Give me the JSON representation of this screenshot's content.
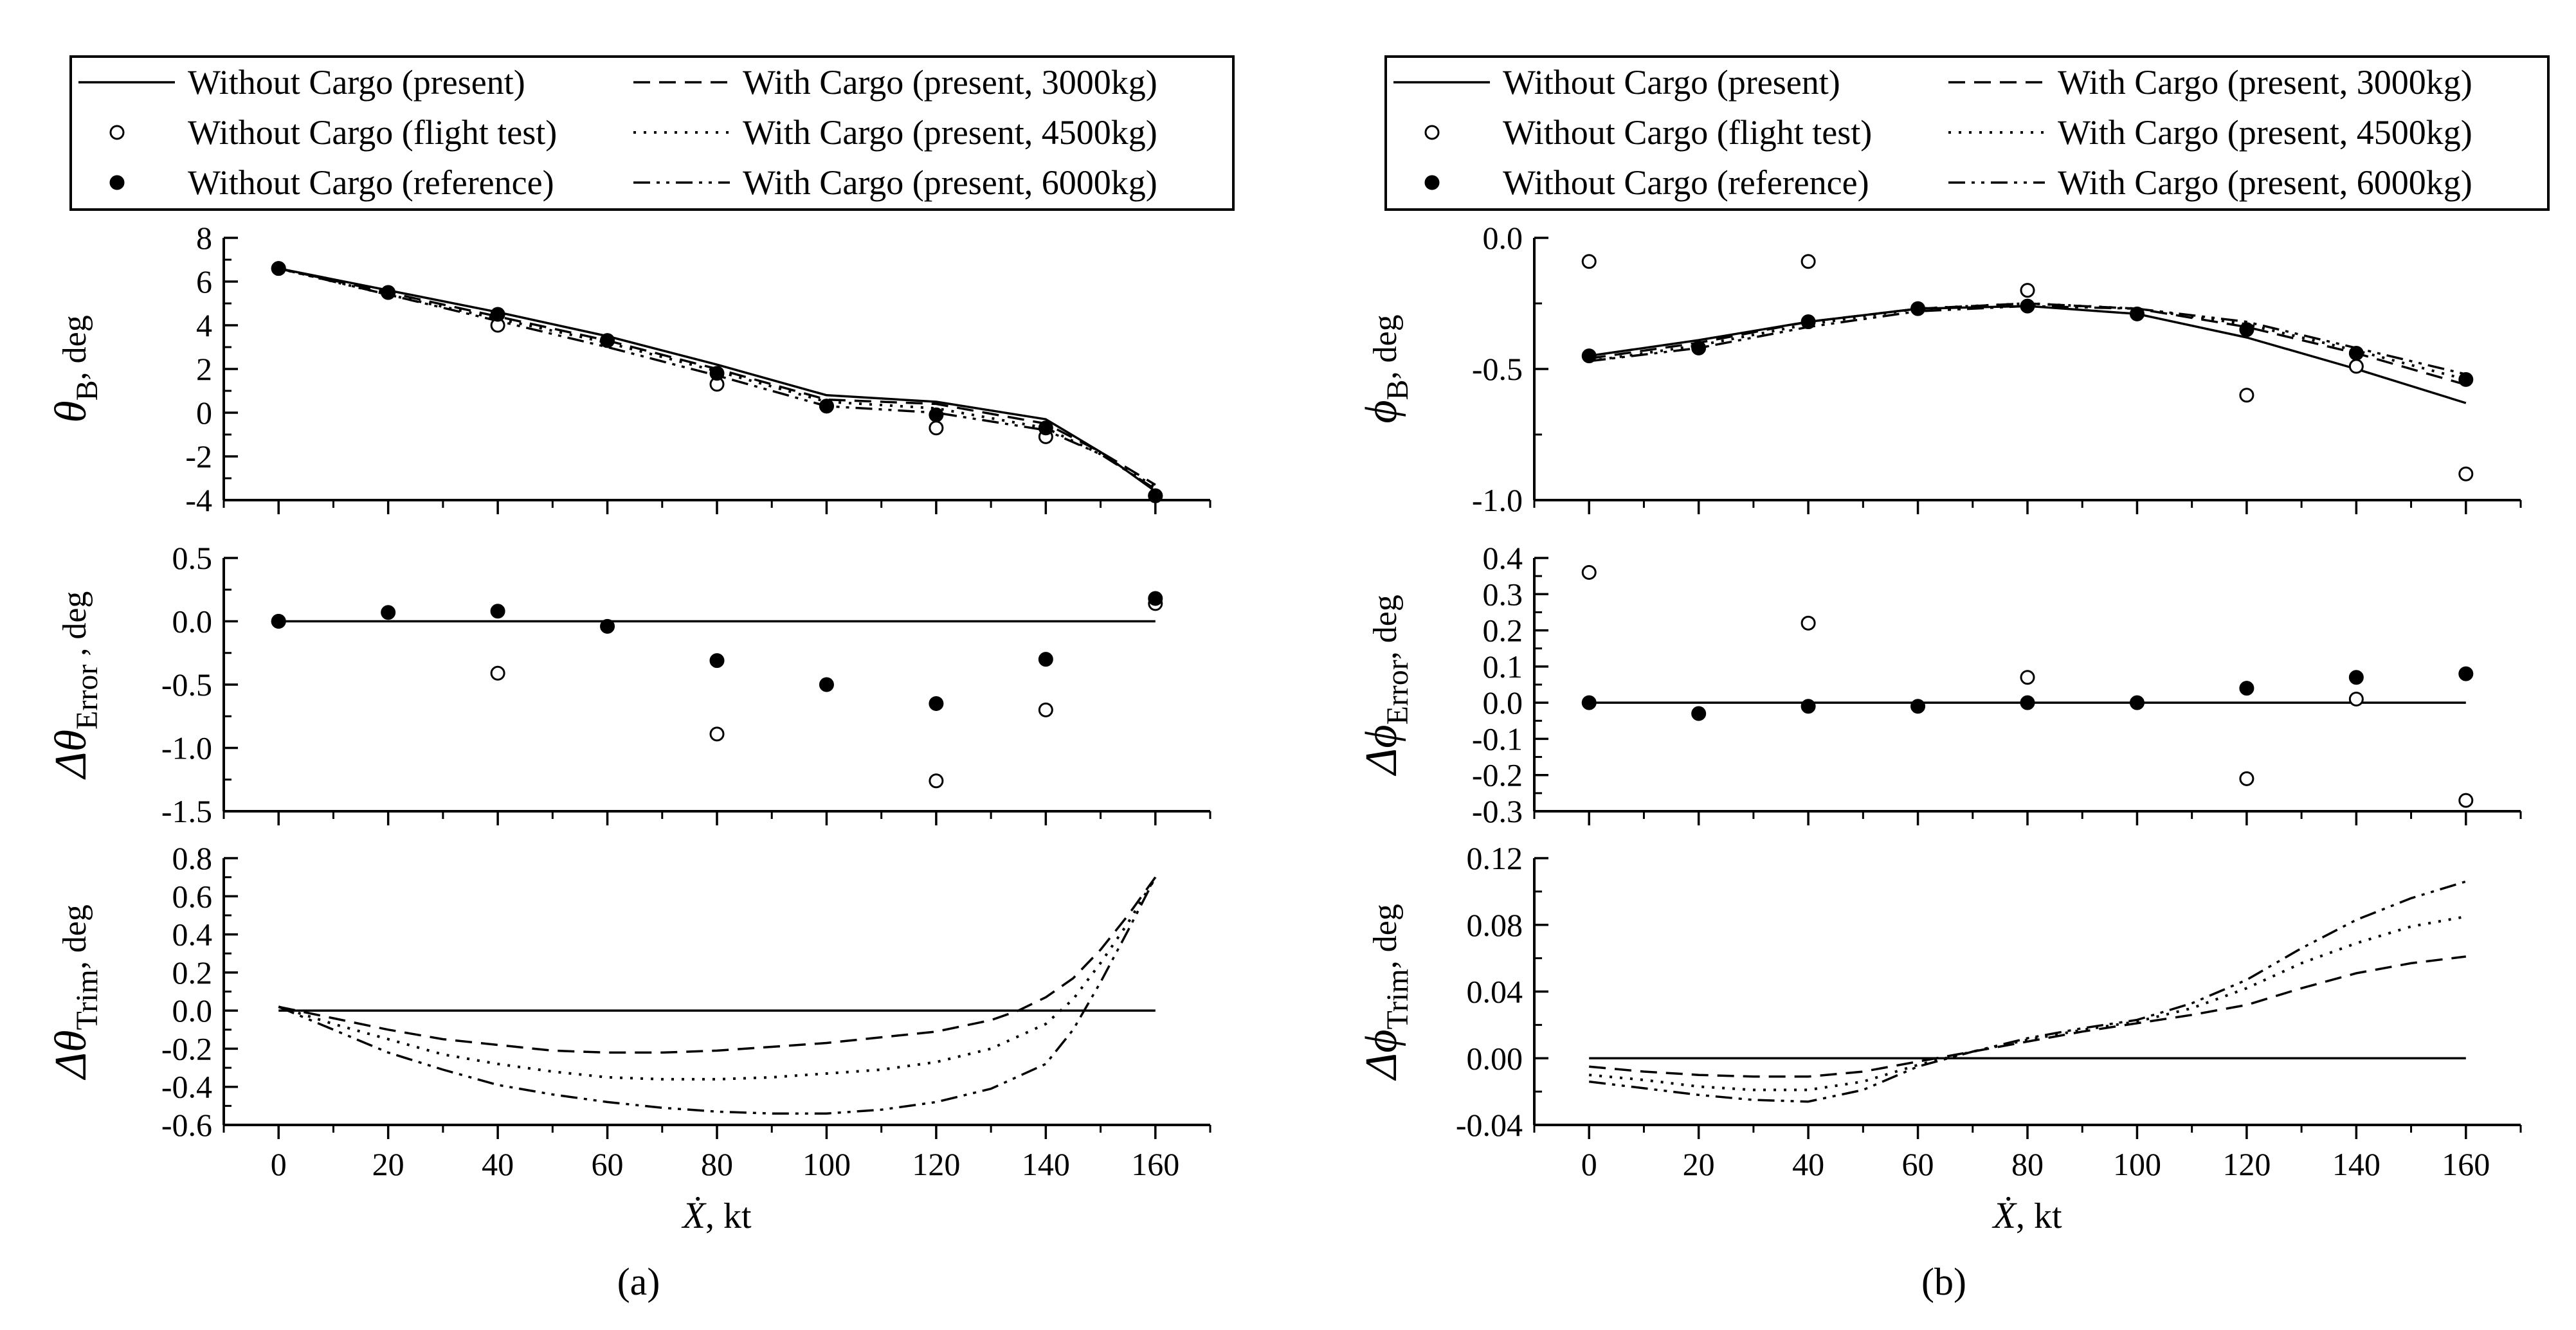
{
  "figure": {
    "caption_a": "(a)",
    "caption_b": "(b)",
    "x_symbol": "Ẋ",
    "x_unit": ", kt"
  },
  "legend": {
    "entries": [
      {
        "label": "Without Cargo (present)",
        "style": "solid"
      },
      {
        "label": "With Cargo (present, 3000kg)",
        "style": "dashed"
      },
      {
        "label": "Without Cargo (flight test)",
        "style": "open-circle"
      },
      {
        "label": "With Cargo (present, 4500kg)",
        "style": "dotted"
      },
      {
        "label": "Without Cargo (reference)",
        "style": "filled-circle"
      },
      {
        "label": "With Cargo (present, 6000kg)",
        "style": "dashdotdot"
      }
    ]
  },
  "chart_data": [
    {
      "id": "theta_B",
      "type": "line",
      "col": 0,
      "row": 0,
      "ylabel": {
        "sym": "θ",
        "sub": "B",
        "unit": ", deg"
      },
      "xlim": [
        -10,
        170
      ],
      "ylim": [
        -4,
        8
      ],
      "yticks": [
        -4,
        -2,
        0,
        2,
        4,
        6,
        8
      ],
      "ytick_labels": [
        "-4",
        "-2",
        "0",
        "2",
        "4",
        "6",
        "8"
      ],
      "series": [
        {
          "name": "Without Cargo (present)",
          "style": "solid",
          "x": [
            0,
            20,
            40,
            60,
            80,
            100,
            120,
            140,
            150,
            160
          ],
          "y": [
            6.6,
            5.6,
            4.6,
            3.5,
            2.2,
            0.8,
            0.5,
            -0.3,
            -1.8,
            -3.6
          ]
        },
        {
          "name": "With Cargo (present, 3000kg)",
          "style": "dashed",
          "x": [
            0,
            20,
            40,
            60,
            80,
            100,
            120,
            140,
            150,
            160
          ],
          "y": [
            6.6,
            5.5,
            4.4,
            3.3,
            2.0,
            0.6,
            0.4,
            -0.5,
            -1.8,
            -3.3
          ]
        },
        {
          "name": "With Cargo (present, 4500kg)",
          "style": "dotted",
          "x": [
            0,
            20,
            40,
            60,
            80,
            100,
            120,
            140,
            150,
            160
          ],
          "y": [
            6.6,
            5.4,
            4.3,
            3.2,
            1.9,
            0.5,
            0.2,
            -0.7,
            -1.9,
            -3.4
          ]
        },
        {
          "name": "With Cargo (present, 6000kg)",
          "style": "dashdotdot",
          "x": [
            0,
            20,
            40,
            60,
            80,
            100,
            120,
            140,
            150,
            160
          ],
          "y": [
            6.6,
            5.4,
            4.2,
            3.0,
            1.7,
            0.3,
            0.0,
            -0.8,
            -1.9,
            -3.5
          ]
        },
        {
          "name": "Without Cargo (flight test)",
          "style": "open-circle",
          "x": [
            0,
            20,
            40,
            60,
            80,
            100,
            120,
            140,
            160
          ],
          "y": [
            6.6,
            5.5,
            4.0,
            3.3,
            1.3,
            0.3,
            -0.7,
            -1.1,
            -3.8
          ]
        },
        {
          "name": "Without Cargo (reference)",
          "style": "filled-circle",
          "x": [
            0,
            20,
            40,
            60,
            80,
            100,
            120,
            140,
            160
          ],
          "y": [
            6.6,
            5.5,
            4.5,
            3.3,
            1.8,
            0.3,
            -0.1,
            -0.7,
            -3.8
          ]
        }
      ]
    },
    {
      "id": "dtheta_error",
      "type": "scatter",
      "col": 0,
      "row": 1,
      "ylabel": {
        "sym": "Δθ",
        "sub": "Error",
        "unit": " , deg"
      },
      "xlim": [
        -10,
        170
      ],
      "ylim": [
        -1.5,
        0.5
      ],
      "yticks": [
        -1.5,
        -1.0,
        -0.5,
        0.0,
        0.5
      ],
      "ytick_labels": [
        "-1.5",
        "-1.0",
        "-0.5",
        "0.0",
        "0.5"
      ],
      "series": [
        {
          "name": "Without Cargo (present)",
          "style": "solid",
          "x": [
            0,
            160
          ],
          "y": [
            0,
            0
          ]
        },
        {
          "name": "Without Cargo (flight test)",
          "style": "open-circle",
          "x": [
            0,
            40,
            80,
            120,
            140,
            160
          ],
          "y": [
            0.0,
            -0.41,
            -0.89,
            -1.26,
            -0.7,
            0.14
          ]
        },
        {
          "name": "Without Cargo (reference)",
          "style": "filled-circle",
          "x": [
            0,
            20,
            40,
            60,
            80,
            100,
            120,
            140,
            160
          ],
          "y": [
            0.0,
            0.07,
            0.08,
            -0.04,
            -0.31,
            -0.5,
            -0.65,
            -0.3,
            0.18
          ]
        }
      ]
    },
    {
      "id": "dtheta_trim",
      "type": "line",
      "col": 0,
      "row": 2,
      "ylabel": {
        "sym": "Δθ",
        "sub": "Trim",
        "unit": ", deg"
      },
      "xlim": [
        -10,
        170
      ],
      "ylim": [
        -0.6,
        0.8
      ],
      "yticks": [
        -0.6,
        -0.4,
        -0.2,
        0.0,
        0.2,
        0.4,
        0.6,
        0.8
      ],
      "ytick_labels": [
        "-0.6",
        "-0.4",
        "-0.2",
        "0.0",
        "0.2",
        "0.4",
        "0.6",
        "0.8"
      ],
      "series": [
        {
          "name": "Without Cargo (present)",
          "style": "solid",
          "x": [
            0,
            160
          ],
          "y": [
            0,
            0
          ]
        },
        {
          "name": "With Cargo (present, 3000kg)",
          "style": "dashed",
          "x": [
            0,
            10,
            20,
            30,
            40,
            50,
            60,
            70,
            80,
            90,
            100,
            110,
            120,
            130,
            135,
            140,
            145,
            150,
            155,
            160
          ],
          "y": [
            0.02,
            -0.04,
            -0.1,
            -0.15,
            -0.18,
            -0.21,
            -0.22,
            -0.22,
            -0.21,
            -0.19,
            -0.17,
            -0.14,
            -0.11,
            -0.05,
            0.0,
            0.07,
            0.17,
            0.32,
            0.5,
            0.7
          ]
        },
        {
          "name": "With Cargo (present, 4500kg)",
          "style": "dotted",
          "x": [
            0,
            10,
            20,
            30,
            40,
            50,
            60,
            70,
            80,
            90,
            100,
            110,
            120,
            130,
            140,
            145,
            150,
            155,
            160
          ],
          "y": [
            0.02,
            -0.07,
            -0.15,
            -0.23,
            -0.28,
            -0.32,
            -0.35,
            -0.36,
            -0.36,
            -0.35,
            -0.33,
            -0.31,
            -0.27,
            -0.2,
            -0.07,
            0.06,
            0.25,
            0.46,
            0.7
          ]
        },
        {
          "name": "With Cargo (present, 6000kg)",
          "style": "dashdotdot",
          "x": [
            0,
            10,
            20,
            30,
            40,
            50,
            60,
            70,
            80,
            90,
            100,
            110,
            120,
            130,
            140,
            145,
            150,
            155,
            160
          ],
          "y": [
            0.02,
            -0.1,
            -0.22,
            -0.31,
            -0.39,
            -0.44,
            -0.48,
            -0.51,
            -0.53,
            -0.54,
            -0.54,
            -0.52,
            -0.48,
            -0.41,
            -0.28,
            -0.1,
            0.15,
            0.42,
            0.7
          ]
        }
      ]
    },
    {
      "id": "phi_B",
      "type": "line",
      "col": 1,
      "row": 0,
      "ylabel": {
        "sym": "ϕ",
        "sub": "B",
        "unit": ", deg"
      },
      "xlim": [
        -10,
        170
      ],
      "ylim": [
        -1.0,
        0.0
      ],
      "yticks": [
        -1.0,
        -0.5,
        0.0
      ],
      "ytick_labels": [
        "-1.0",
        "-0.5",
        "0.0"
      ],
      "series": [
        {
          "name": "Without Cargo (present)",
          "style": "solid",
          "x": [
            0,
            20,
            40,
            60,
            80,
            100,
            120,
            140,
            160
          ],
          "y": [
            -0.45,
            -0.39,
            -0.32,
            -0.27,
            -0.26,
            -0.29,
            -0.38,
            -0.5,
            -0.63
          ]
        },
        {
          "name": "With Cargo (present, 3000kg)",
          "style": "dashed",
          "x": [
            0,
            20,
            40,
            60,
            80,
            100,
            120,
            140,
            160
          ],
          "y": [
            -0.46,
            -0.4,
            -0.32,
            -0.27,
            -0.25,
            -0.27,
            -0.34,
            -0.44,
            -0.56
          ]
        },
        {
          "name": "With Cargo (present, 4500kg)",
          "style": "dotted",
          "x": [
            0,
            20,
            40,
            60,
            80,
            100,
            120,
            140,
            160
          ],
          "y": [
            -0.47,
            -0.41,
            -0.33,
            -0.27,
            -0.25,
            -0.27,
            -0.33,
            -0.43,
            -0.54
          ]
        },
        {
          "name": "With Cargo (present, 6000kg)",
          "style": "dashdotdot",
          "x": [
            0,
            20,
            40,
            60,
            80,
            100,
            120,
            140,
            160
          ],
          "y": [
            -0.47,
            -0.42,
            -0.34,
            -0.28,
            -0.26,
            -0.27,
            -0.32,
            -0.42,
            -0.52
          ]
        },
        {
          "name": "Without Cargo (flight test)",
          "style": "open-circle",
          "x": [
            0,
            40,
            80,
            120,
            140,
            160
          ],
          "y": [
            -0.09,
            -0.09,
            -0.2,
            -0.6,
            -0.49,
            -0.9
          ]
        },
        {
          "name": "Without Cargo (reference)",
          "style": "filled-circle",
          "x": [
            0,
            20,
            40,
            60,
            80,
            100,
            120,
            140,
            160
          ],
          "y": [
            -0.45,
            -0.42,
            -0.32,
            -0.27,
            -0.26,
            -0.29,
            -0.35,
            -0.44,
            -0.54
          ]
        }
      ]
    },
    {
      "id": "dphi_error",
      "type": "scatter",
      "col": 1,
      "row": 1,
      "ylabel": {
        "sym": "Δϕ",
        "sub": "Error",
        "unit": ", deg"
      },
      "xlim": [
        -10,
        170
      ],
      "ylim": [
        -0.3,
        0.4
      ],
      "yticks": [
        -0.3,
        -0.2,
        -0.1,
        0.0,
        0.1,
        0.2,
        0.3,
        0.4
      ],
      "ytick_labels": [
        "-0.3",
        "-0.2",
        "-0.1",
        "0.0",
        "0.1",
        "0.2",
        "0.3",
        "0.4"
      ],
      "series": [
        {
          "name": "Without Cargo (present)",
          "style": "solid",
          "x": [
            0,
            160
          ],
          "y": [
            0,
            0
          ]
        },
        {
          "name": "Without Cargo (flight test)",
          "style": "open-circle",
          "x": [
            0,
            40,
            80,
            120,
            140,
            160
          ],
          "y": [
            0.36,
            0.22,
            0.07,
            -0.21,
            0.01,
            -0.27
          ]
        },
        {
          "name": "Without Cargo (reference)",
          "style": "filled-circle",
          "x": [
            0,
            20,
            40,
            60,
            80,
            100,
            120,
            140,
            160
          ],
          "y": [
            0.0,
            -0.03,
            -0.01,
            -0.01,
            0.0,
            0.0,
            0.04,
            0.07,
            0.08
          ]
        }
      ]
    },
    {
      "id": "dphi_trim",
      "type": "line",
      "col": 1,
      "row": 2,
      "ylabel": {
        "sym": "Δϕ",
        "sub": "Trim",
        "unit": ", deg"
      },
      "xlim": [
        -10,
        170
      ],
      "ylim": [
        -0.04,
        0.12
      ],
      "yticks": [
        -0.04,
        0.0,
        0.04,
        0.08,
        0.12
      ],
      "ytick_labels": [
        "-0.04",
        "0.00",
        "0.04",
        "0.08",
        "0.12"
      ],
      "series": [
        {
          "name": "Without Cargo (present)",
          "style": "solid",
          "x": [
            0,
            160
          ],
          "y": [
            0,
            0
          ]
        },
        {
          "name": "With Cargo (present, 3000kg)",
          "style": "dashed",
          "x": [
            0,
            10,
            20,
            30,
            40,
            50,
            60,
            70,
            80,
            90,
            100,
            110,
            120,
            130,
            140,
            150,
            160
          ],
          "y": [
            -0.005,
            -0.008,
            -0.01,
            -0.011,
            -0.011,
            -0.008,
            -0.002,
            0.004,
            0.01,
            0.016,
            0.021,
            0.026,
            0.032,
            0.042,
            0.051,
            0.057,
            0.061
          ]
        },
        {
          "name": "With Cargo (present, 4500kg)",
          "style": "dotted",
          "x": [
            0,
            10,
            20,
            30,
            40,
            50,
            60,
            70,
            80,
            90,
            100,
            110,
            120,
            130,
            140,
            150,
            160
          ],
          "y": [
            -0.01,
            -0.013,
            -0.017,
            -0.019,
            -0.019,
            -0.014,
            -0.004,
            0.004,
            0.011,
            0.017,
            0.022,
            0.03,
            0.042,
            0.057,
            0.069,
            0.079,
            0.085
          ]
        },
        {
          "name": "With Cargo (present, 6000kg)",
          "style": "dashdotdot",
          "x": [
            0,
            10,
            20,
            30,
            40,
            50,
            60,
            70,
            80,
            90,
            100,
            110,
            120,
            130,
            140,
            150,
            160
          ],
          "y": [
            -0.014,
            -0.018,
            -0.022,
            -0.025,
            -0.026,
            -0.019,
            -0.005,
            0.004,
            0.012,
            0.018,
            0.023,
            0.033,
            0.047,
            0.066,
            0.083,
            0.096,
            0.106
          ]
        }
      ]
    }
  ],
  "xaxis": {
    "ticks": [
      0,
      20,
      40,
      60,
      80,
      100,
      120,
      140,
      160
    ],
    "tick_labels": [
      "0",
      "20",
      "40",
      "60",
      "80",
      "100",
      "120",
      "140",
      "160"
    ]
  }
}
